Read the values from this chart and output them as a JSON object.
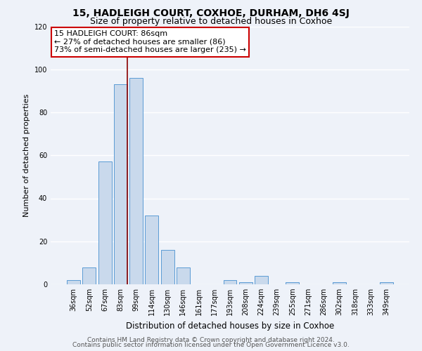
{
  "title": "15, HADLEIGH COURT, COXHOE, DURHAM, DH6 4SJ",
  "subtitle": "Size of property relative to detached houses in Coxhoe",
  "xlabel": "Distribution of detached houses by size in Coxhoe",
  "ylabel": "Number of detached properties",
  "bar_color": "#c9d9ec",
  "bar_edge_color": "#5b9bd5",
  "categories": [
    "36sqm",
    "52sqm",
    "67sqm",
    "83sqm",
    "99sqm",
    "114sqm",
    "130sqm",
    "146sqm",
    "161sqm",
    "177sqm",
    "193sqm",
    "208sqm",
    "224sqm",
    "239sqm",
    "255sqm",
    "271sqm",
    "286sqm",
    "302sqm",
    "318sqm",
    "333sqm",
    "349sqm"
  ],
  "values": [
    2,
    8,
    57,
    93,
    96,
    32,
    16,
    8,
    0,
    0,
    2,
    1,
    4,
    0,
    1,
    0,
    0,
    1,
    0,
    0,
    1
  ],
  "ylim": [
    0,
    120
  ],
  "yticks": [
    0,
    20,
    40,
    60,
    80,
    100,
    120
  ],
  "annotation_box_text": "15 HADLEIGH COURT: 86sqm\n← 27% of detached houses are smaller (86)\n73% of semi-detached houses are larger (235) →",
  "vline_color": "#8b0000",
  "footer_line1": "Contains HM Land Registry data © Crown copyright and database right 2024.",
  "footer_line2": "Contains public sector information licensed under the Open Government Licence v3.0.",
  "background_color": "#eef2f9",
  "grid_color": "#ffffff",
  "annotation_box_color": "#ffffff",
  "annotation_box_edge_color": "#cc0000",
  "title_fontsize": 10,
  "subtitle_fontsize": 9,
  "xlabel_fontsize": 8.5,
  "ylabel_fontsize": 8,
  "tick_fontsize": 7,
  "annotation_fontsize": 8,
  "footer_fontsize": 6.5
}
